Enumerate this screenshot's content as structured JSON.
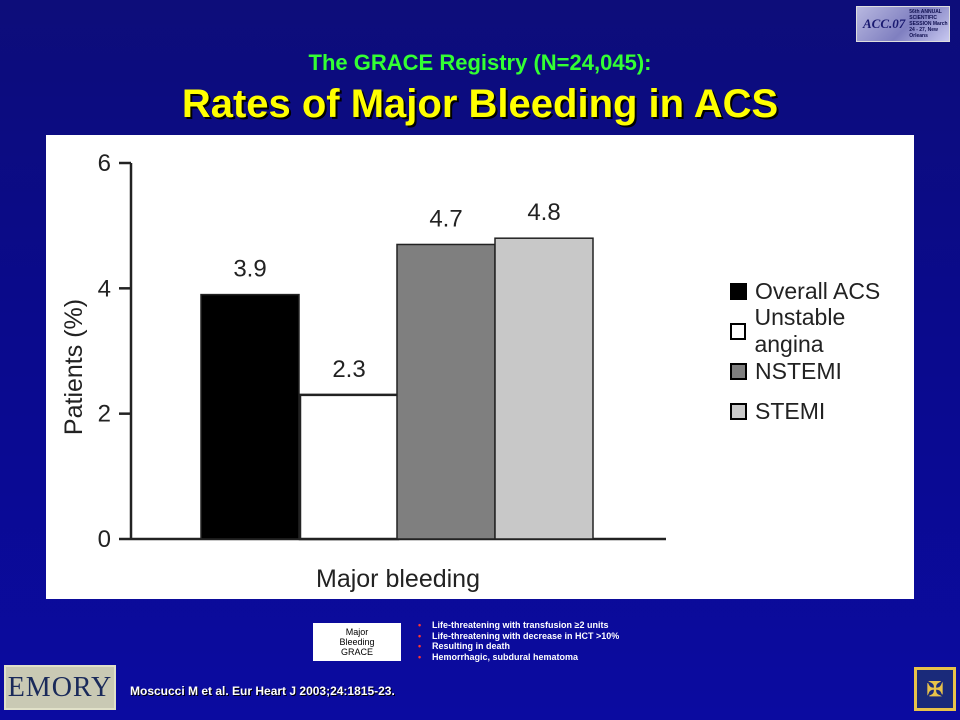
{
  "header": {
    "title_line1": "The GRACE Registry (N=24,045):",
    "title_line2": "Rates of Major Bleeding in ACS",
    "logo_mark": "ACC.07",
    "logo_text": "56th ANNUAL SCIENTIFIC SESSION March 24 - 27, New Orleans"
  },
  "chart_data": {
    "type": "bar",
    "categories": [
      "Major bleeding"
    ],
    "xlabel": "Major bleeding",
    "ylabel": "Patients (%)",
    "ylim": [
      0,
      6
    ],
    "yticks": [
      "0",
      "2",
      "4",
      "6"
    ],
    "grid": false,
    "legend_position": "right",
    "series": [
      {
        "name": "Overall ACS",
        "values": [
          3.9
        ],
        "label": "3.9",
        "color": "#000000"
      },
      {
        "name": "Unstable angina",
        "values": [
          2.3
        ],
        "label": "2.3",
        "color": "#ffffff"
      },
      {
        "name": "NSTEMI",
        "values": [
          4.7
        ],
        "label": "4.7",
        "color": "#7f7f7f"
      },
      {
        "name": "STEMI",
        "values": [
          4.8
        ],
        "label": "4.8",
        "color": "#c8c8c8"
      }
    ]
  },
  "definition": {
    "box_label_line1": "Major",
    "box_label_line2": "Bleeding",
    "box_label_line3": "GRACE",
    "criteria": [
      "Life-threatening with transfusion ≥2 units",
      "Life-threatening with decrease in HCT >10%",
      "Resulting in death",
      "Hemorrhagic, subdural hematoma"
    ]
  },
  "footer": {
    "emory_logo": "EMORY",
    "citation": "Moscucci M et al.  Eur Heart J 2003;24:1815-23.",
    "shield_icon": "emory-shield-icon"
  }
}
